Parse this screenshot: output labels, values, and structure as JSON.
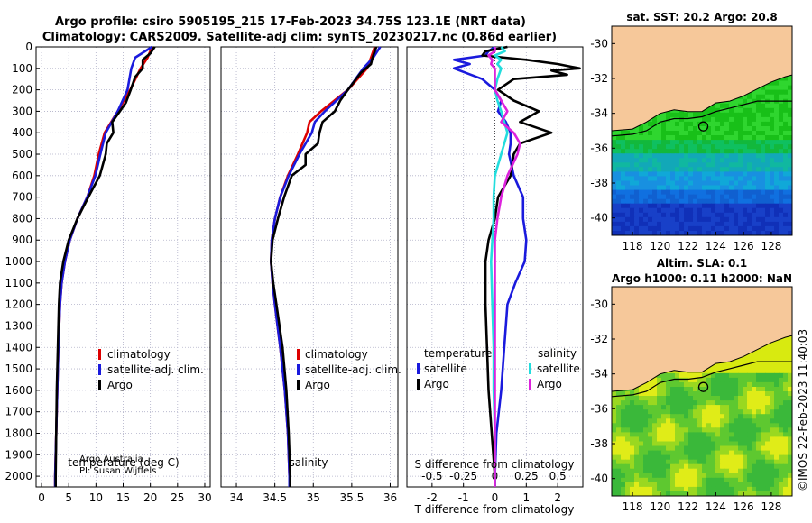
{
  "header": {
    "line1": "Argo profile: csiro 5905195_215 17-Feb-2023 34.75S 123.1E (NRT data)",
    "line2": "Climatology: CARS2009. Satellite-adj clim: synTS_20230217.nc (0.86d earlier)"
  },
  "credits": {
    "org": "Argo Australia",
    "pi": "PI: Susan Wijffels"
  },
  "watermark": "©IMOS 22-Feb-2023 11:40:03",
  "colors": {
    "climatology": "#dd0000",
    "satellite": "#1a1add",
    "argo": "#000000",
    "sat_salinity": "#22dddd",
    "argo_salinity": "#dd22dd",
    "land": "#f6c89a",
    "grid": "#b0b0c8"
  },
  "chart_data": [
    {
      "type": "line",
      "id": "temperature",
      "xlabel": "temperature (deg C)",
      "ylabel": "",
      "xlim": [
        -1,
        31
      ],
      "ylim": [
        2050,
        0
      ],
      "xticks": [
        0,
        5,
        10,
        15,
        20,
        25,
        30
      ],
      "yticks": [
        0,
        100,
        200,
        300,
        400,
        500,
        600,
        700,
        800,
        900,
        1000,
        1100,
        1200,
        1300,
        1400,
        1500,
        1600,
        1700,
        1800,
        1900,
        2000
      ],
      "legend": [
        "climatology",
        "satellite-adj. clim.",
        "Argo"
      ],
      "series": [
        {
          "name": "climatology",
          "depth": [
            0,
            50,
            100,
            200,
            300,
            400,
            500,
            600,
            700,
            800,
            900,
            1000,
            1100,
            1200,
            1400,
            1600,
            1800,
            2000,
            2050
          ],
          "values": [
            20.3,
            19.5,
            18.2,
            16.3,
            14.0,
            11.6,
            10.5,
            9.7,
            8.4,
            6.6,
            5.2,
            4.3,
            3.7,
            3.4,
            3.1,
            2.9,
            2.7,
            2.5,
            2.5
          ]
        },
        {
          "name": "satellite-adj. clim.",
          "depth": [
            0,
            50,
            100,
            200,
            300,
            400,
            500,
            600,
            700,
            800,
            900,
            1000,
            1100,
            1200,
            1400,
            1600,
            1800,
            2000,
            2050
          ],
          "values": [
            20.3,
            17.2,
            16.5,
            15.8,
            14.0,
            11.8,
            10.8,
            9.9,
            8.4,
            6.6,
            5.2,
            4.3,
            3.7,
            3.4,
            3.1,
            2.9,
            2.7,
            2.5,
            2.5
          ]
        },
        {
          "name": "Argo",
          "depth": [
            0,
            30,
            60,
            100,
            140,
            200,
            260,
            300,
            350,
            400,
            450,
            500,
            600,
            700,
            800,
            900,
            1000,
            1100,
            1200,
            1400,
            1600,
            1800,
            2000,
            2050
          ],
          "values": [
            20.8,
            20.0,
            18.6,
            18.6,
            17.2,
            16.4,
            15.5,
            14.4,
            13.0,
            13.2,
            12.0,
            11.8,
            10.7,
            8.6,
            6.6,
            5.0,
            4.0,
            3.4,
            3.2,
            3.0,
            2.8,
            2.7,
            2.6,
            2.6
          ]
        }
      ]
    },
    {
      "type": "line",
      "id": "salinity",
      "xlabel": "salinity",
      "ylabel": "",
      "xlim": [
        33.8,
        36.1
      ],
      "ylim": [
        2050,
        0
      ],
      "xticks": [
        34,
        34.5,
        35,
        35.5,
        36
      ],
      "legend": [
        "climatology",
        "satellite-adj. clim.",
        "Argo"
      ],
      "series": [
        {
          "name": "climatology",
          "depth": [
            0,
            50,
            100,
            200,
            300,
            350,
            400,
            500,
            600,
            700,
            800,
            900,
            1000,
            1100,
            1200,
            1400,
            1600,
            1800,
            2000,
            2050
          ],
          "values": [
            35.8,
            35.75,
            35.7,
            35.45,
            35.1,
            34.95,
            34.92,
            34.8,
            34.67,
            34.57,
            34.5,
            34.46,
            34.45,
            34.47,
            34.5,
            34.57,
            34.63,
            34.67,
            34.69,
            34.69
          ]
        },
        {
          "name": "satellite-adj. clim.",
          "depth": [
            0,
            50,
            100,
            200,
            300,
            350,
            400,
            500,
            600,
            700,
            800,
            900,
            1000,
            1100,
            1200,
            1400,
            1600,
            1800,
            2000,
            2050
          ],
          "values": [
            35.87,
            35.78,
            35.65,
            35.45,
            35.15,
            35.02,
            34.98,
            34.82,
            34.68,
            34.57,
            34.5,
            34.46,
            34.45,
            34.47,
            34.5,
            34.57,
            34.63,
            34.67,
            34.69,
            34.69
          ]
        },
        {
          "name": "Argo",
          "depth": [
            0,
            50,
            80,
            120,
            200,
            250,
            300,
            350,
            400,
            450,
            500,
            550,
            600,
            700,
            800,
            900,
            1000,
            1100,
            1200,
            1400,
            1600,
            1800,
            2000,
            2050
          ],
          "values": [
            35.82,
            35.77,
            35.75,
            35.62,
            35.45,
            35.35,
            35.28,
            35.12,
            35.08,
            35.06,
            34.9,
            34.9,
            34.72,
            34.62,
            34.54,
            34.47,
            34.45,
            34.48,
            34.52,
            34.6,
            34.65,
            34.68,
            34.7,
            34.7
          ]
        }
      ]
    },
    {
      "type": "line",
      "id": "difference",
      "xlabel": "T difference from climatology",
      "top_axis_label": "S difference from climatology",
      "xlim": [
        -2.8,
        2.8
      ],
      "ylim": [
        2050,
        0
      ],
      "xticks": [
        -2,
        -1,
        0,
        1,
        2
      ],
      "top_ticks": [
        -0.5,
        -0.25,
        0,
        0.25,
        0.5
      ],
      "legend_temperature_title": "temperature",
      "legend_salinity_title": "salinity",
      "legend": [
        "satellite",
        "Argo",
        "satellite",
        "Argo"
      ],
      "series": [
        {
          "name": "T satellite",
          "depth": [
            0,
            20,
            40,
            60,
            80,
            100,
            150,
            200,
            250,
            300,
            350,
            400,
            450,
            500,
            600,
            700,
            800,
            900,
            1000,
            1100,
            1200,
            1400,
            1600,
            1800,
            2000,
            2050
          ],
          "values": [
            0.0,
            -0.2,
            -0.3,
            -1.3,
            -0.8,
            -1.3,
            -0.4,
            0.0,
            0.2,
            0.1,
            0.35,
            0.5,
            0.5,
            0.45,
            0.6,
            0.9,
            0.9,
            1.0,
            0.95,
            0.65,
            0.4,
            0.3,
            0.2,
            0.05,
            0.0,
            0.0
          ]
        },
        {
          "name": "T Argo",
          "depth": [
            0,
            20,
            40,
            60,
            80,
            100,
            110,
            130,
            150,
            200,
            250,
            300,
            350,
            400,
            450,
            500,
            600,
            700,
            800,
            900,
            1000,
            1200,
            1400,
            1600,
            1800,
            2000,
            2050
          ],
          "values": [
            0.4,
            -0.3,
            -0.4,
            1.0,
            2.0,
            2.7,
            1.8,
            2.3,
            0.6,
            0.1,
            0.6,
            1.4,
            0.8,
            1.8,
            0.8,
            0.6,
            0.5,
            0.1,
            0.0,
            -0.2,
            -0.3,
            -0.3,
            -0.25,
            -0.2,
            -0.1,
            0.0,
            0.0
          ]
        },
        {
          "name": "S satellite",
          "depth": [
            0,
            20,
            40,
            60,
            80,
            100,
            150,
            200,
            250,
            300,
            400,
            500,
            600,
            700,
            800,
            900,
            1000,
            1200,
            1400,
            1600,
            1800,
            2000,
            2050
          ],
          "values": [
            0.05,
            0.08,
            0.0,
            0.05,
            0.02,
            0.05,
            0.02,
            0.0,
            0.02,
            0.05,
            0.1,
            0.05,
            0.0,
            -0.01,
            -0.01,
            -0.02,
            -0.03,
            -0.02,
            -0.01,
            -0.01,
            0.0,
            0.0,
            0.0
          ]
        },
        {
          "name": "S Argo",
          "depth": [
            0,
            20,
            40,
            60,
            80,
            100,
            150,
            200,
            250,
            300,
            350,
            400,
            450,
            500,
            550,
            600,
            700,
            800,
            900,
            1000,
            1200,
            1400,
            1600,
            1800,
            2000,
            2050
          ],
          "values": [
            0.0,
            0.0,
            -0.05,
            -0.02,
            -0.03,
            0.0,
            0.0,
            0.0,
            0.05,
            0.1,
            0.05,
            0.15,
            0.2,
            0.18,
            0.14,
            0.1,
            0.05,
            0.02,
            0.0,
            0.0,
            0.0,
            0.0,
            0.0,
            0.0,
            0.0,
            0.0
          ]
        }
      ]
    },
    {
      "type": "heatmap",
      "id": "sst_map",
      "title": "sat. SST: 20.2 Argo: 20.8",
      "xlim": [
        116.5,
        129.5
      ],
      "ylim": [
        -41,
        -29
      ],
      "xticks": [
        118,
        120,
        122,
        124,
        126,
        128
      ],
      "yticks": [
        -30,
        -32,
        -34,
        -36,
        -38,
        -40
      ],
      "float_position": {
        "lon": 123.1,
        "lat": -34.75
      },
      "color_bands": [
        {
          "lat_from": -35.2,
          "lat_to": -36.2,
          "color": "#14c814"
        },
        {
          "lat_from": -36.2,
          "lat_to": -37.5,
          "color": "#10b890"
        },
        {
          "lat_from": -37.5,
          "lat_to": -38.8,
          "color": "#10a0d0"
        },
        {
          "lat_from": -38.8,
          "lat_to": -41,
          "color": "#1030c0"
        }
      ]
    },
    {
      "type": "heatmap",
      "id": "sla_map",
      "title_line1": "Altim. SLA: 0.1",
      "title_line2": "Argo h1000: 0.11 h2000: NaN",
      "xlim": [
        116.5,
        129.5
      ],
      "ylim": [
        -41,
        -29
      ],
      "xticks": [
        118,
        120,
        122,
        124,
        126,
        128
      ],
      "yticks": [
        -30,
        -32,
        -34,
        -36,
        -38,
        -40
      ],
      "float_position": {
        "lon": 123.1,
        "lat": -34.75
      }
    }
  ]
}
